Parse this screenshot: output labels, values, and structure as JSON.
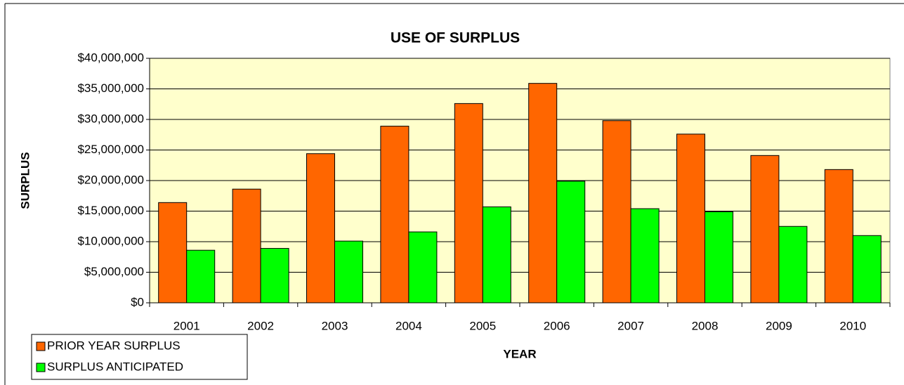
{
  "chart_data": {
    "type": "bar",
    "title": "USE OF SURPLUS",
    "x_label": "YEAR",
    "y_label": "SURPLUS",
    "categories": [
      "2001",
      "2002",
      "2003",
      "2004",
      "2005",
      "2006",
      "2007",
      "2008",
      "2009",
      "2010"
    ],
    "series": [
      {
        "name": "PRIOR YEAR SURPLUS",
        "color": "#ff6600",
        "values": [
          16400000,
          18600000,
          24400000,
          28900000,
          32600000,
          35900000,
          29800000,
          27600000,
          24100000,
          21800000
        ]
      },
      {
        "name": "SURPLUS ANTICIPATED",
        "color": "#00ff00",
        "values": [
          8600000,
          8900000,
          10100000,
          11600000,
          15700000,
          19900000,
          15400000,
          14900000,
          12500000,
          11000000
        ]
      }
    ],
    "ylim": [
      0,
      40000000
    ],
    "yticks": [
      {
        "value": 0,
        "label": "$0"
      },
      {
        "value": 5000000,
        "label": "$5,000,000"
      },
      {
        "value": 10000000,
        "label": "$10,000,000"
      },
      {
        "value": 15000000,
        "label": "$15,000,000"
      },
      {
        "value": 20000000,
        "label": "$20,000,000"
      },
      {
        "value": 25000000,
        "label": "$25,000,000"
      },
      {
        "value": 30000000,
        "label": "$30,000,000"
      },
      {
        "value": 35000000,
        "label": "$35,000,000"
      },
      {
        "value": 40000000,
        "label": "$40,000,000"
      }
    ],
    "grid": true,
    "plot_background": "#ffffcc",
    "legend": "bottom-left"
  }
}
